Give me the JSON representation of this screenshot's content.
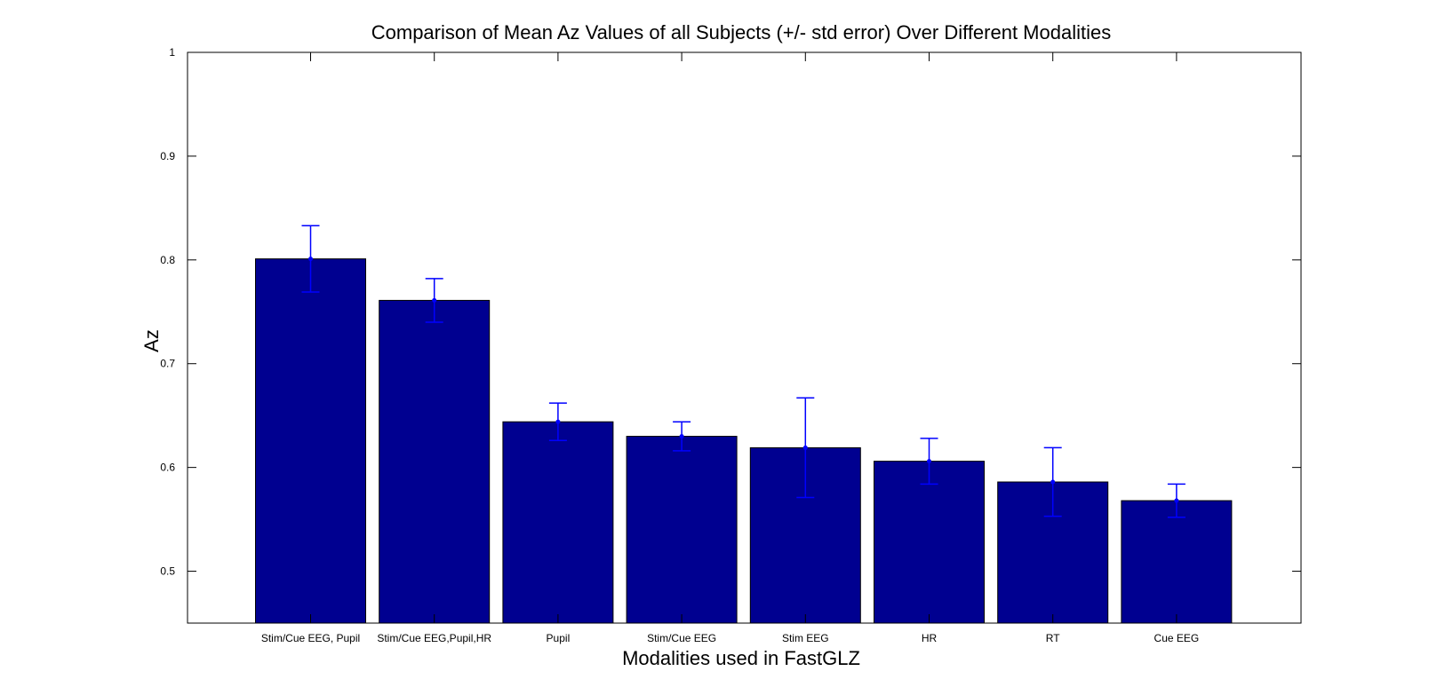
{
  "chart_data": {
    "type": "bar",
    "title": "Comparison of Mean Az Values of all Subjects (+/- std error) Over Different Modalities",
    "xlabel": "Modalities used in FastGLZ",
    "ylabel": "Az",
    "ylim": [
      0.45,
      1.0
    ],
    "yticks": [
      0.5,
      0.6,
      0.7,
      0.8,
      0.9,
      1
    ],
    "ytick_labels": [
      "0.5",
      "0.6",
      "0.7",
      "0.8",
      "0.9",
      "1"
    ],
    "grid": false,
    "categories": [
      "Stim/Cue EEG, Pupil",
      "Stim/Cue EEG,Pupil,HR",
      "Pupil",
      "Stim/Cue EEG",
      "Stim EEG",
      "HR",
      "RT",
      "Cue EEG"
    ],
    "values": [
      0.801,
      0.761,
      0.644,
      0.63,
      0.619,
      0.606,
      0.586,
      0.568
    ],
    "errors": [
      0.032,
      0.021,
      0.018,
      0.014,
      0.048,
      0.022,
      0.033,
      0.016
    ],
    "colors": {
      "bar": "#000090",
      "error_bar": "#0000ff"
    }
  }
}
